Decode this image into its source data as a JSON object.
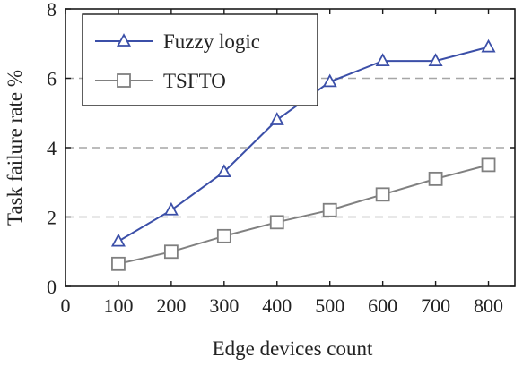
{
  "chart_data": {
    "type": "line",
    "title": "",
    "xlabel": "Edge devices count",
    "ylabel": "Task failure rate %",
    "xlim": [
      0,
      850
    ],
    "ylim": [
      0,
      8
    ],
    "xticks": [
      "0",
      "100",
      "200",
      "300",
      "400",
      "500",
      "600",
      "700",
      "800"
    ],
    "yticks": [
      "0",
      "2",
      "4",
      "6",
      "8"
    ],
    "x": [
      100,
      200,
      300,
      400,
      500,
      600,
      700,
      800
    ],
    "grid": "horizontal dashed at 2, 4, 6",
    "legend": "top-left",
    "series": [
      {
        "name": "Fuzzy logic",
        "marker": "triangle",
        "color": "#3b4fa8",
        "values": [
          1.3,
          2.2,
          3.3,
          4.8,
          5.9,
          6.5,
          6.5,
          6.9
        ]
      },
      {
        "name": "TSFTO",
        "marker": "square",
        "color": "#808080",
        "values": [
          0.65,
          1.0,
          1.45,
          1.85,
          2.2,
          2.65,
          3.1,
          3.5
        ]
      }
    ]
  }
}
